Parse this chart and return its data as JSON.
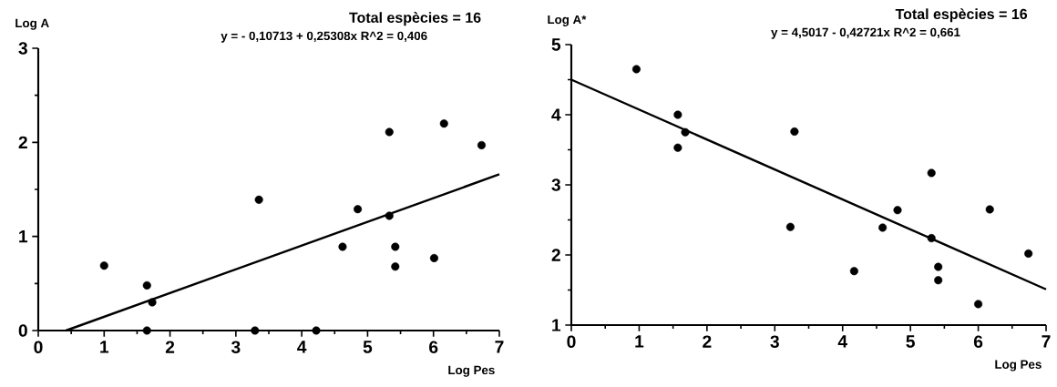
{
  "chart_data": [
    {
      "type": "scatter",
      "ylabel": "Log A",
      "xlabel": "Log Pes",
      "annotations": [
        "Total espècies = 16",
        "y =  - 0,10713 + 0,25308x    R^2 = 0,406"
      ],
      "xlim": [
        0,
        7
      ],
      "ylim": [
        0,
        3
      ],
      "xticks": [
        0,
        1,
        2,
        3,
        4,
        5,
        6,
        7
      ],
      "yticks": [
        0,
        1,
        2,
        3
      ],
      "series": [
        {
          "marker": "circle",
          "color": "#000000",
          "x": [
            1.0,
            1.65,
            1.73,
            1.65,
            3.35,
            3.29,
            4.22,
            4.62,
            4.85,
            5.33,
            6.16,
            6.73,
            5.33,
            5.42,
            5.42,
            6.01
          ],
          "values": [
            0.69,
            0.48,
            0.3,
            0,
            1.39,
            0,
            0,
            0.89,
            1.29,
            2.11,
            2.2,
            1.97,
            1.22,
            0.89,
            0.68,
            0.77
          ]
        },
        {
          "type": "line",
          "marker": "none",
          "color": "#000000",
          "x": [
            0.42,
            7
          ],
          "values": [
            0,
            1.66
          ]
        }
      ]
    },
    {
      "type": "scatter",
      "ylabel": "Log A*",
      "xlabel": "Log Pes",
      "annotations": [
        "Total espècies = 16",
        "y = 4,5017 - 0,42721x    R^2 = 0,661"
      ],
      "xlim": [
        0,
        7
      ],
      "ylim": [
        1,
        5
      ],
      "xticks": [
        0,
        1,
        2,
        3,
        4,
        5,
        6,
        7
      ],
      "yticks": [
        1,
        2,
        3,
        4,
        5
      ],
      "series": [
        {
          "marker": "circle",
          "color": "#000000",
          "x": [
            0.96,
            1.57,
            1.57,
            1.68,
            3.29,
            3.23,
            5.31,
            6.17,
            4.81,
            4.59,
            5.31,
            6.74,
            4.17,
            5.41,
            5.41,
            6.0
          ],
          "values": [
            4.65,
            4.0,
            3.53,
            3.75,
            3.76,
            2.4,
            3.17,
            2.65,
            2.64,
            2.39,
            2.24,
            2.02,
            1.77,
            1.83,
            1.64,
            1.3
          ]
        },
        {
          "type": "line",
          "marker": "none",
          "color": "#000000",
          "x": [
            0,
            7
          ],
          "values": [
            4.5,
            1.51
          ]
        }
      ]
    }
  ]
}
